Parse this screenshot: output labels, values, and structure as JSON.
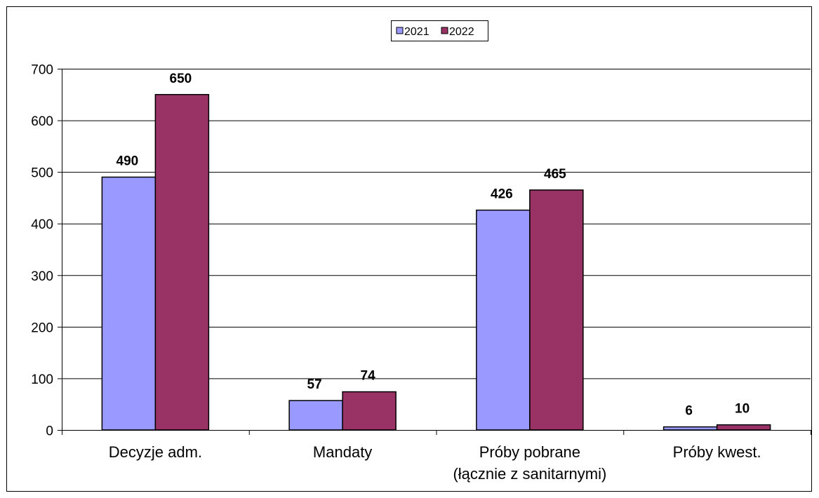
{
  "colors": {
    "2021": "#9999ff",
    "2022": "#993366",
    "grid": "#000000",
    "bar_stroke": "#000000"
  },
  "chart_data": {
    "type": "bar",
    "title": "",
    "xlabel": "",
    "ylabel": "",
    "categories": [
      [
        "Decyzje adm."
      ],
      [
        "Mandaty"
      ],
      [
        "Próby pobrane",
        "(łącznie z sanitarnymi)"
      ],
      [
        "Próby kwest."
      ]
    ],
    "series": [
      {
        "name": "2021",
        "values": [
          490,
          57,
          426,
          6
        ]
      },
      {
        "name": "2022",
        "values": [
          650,
          74,
          465,
          10
        ]
      }
    ],
    "ylim": [
      0,
      700
    ],
    "yticks": [
      0,
      100,
      200,
      300,
      400,
      500,
      600,
      700
    ],
    "grid": true,
    "legend_position": "top-center",
    "data_labels": true
  }
}
